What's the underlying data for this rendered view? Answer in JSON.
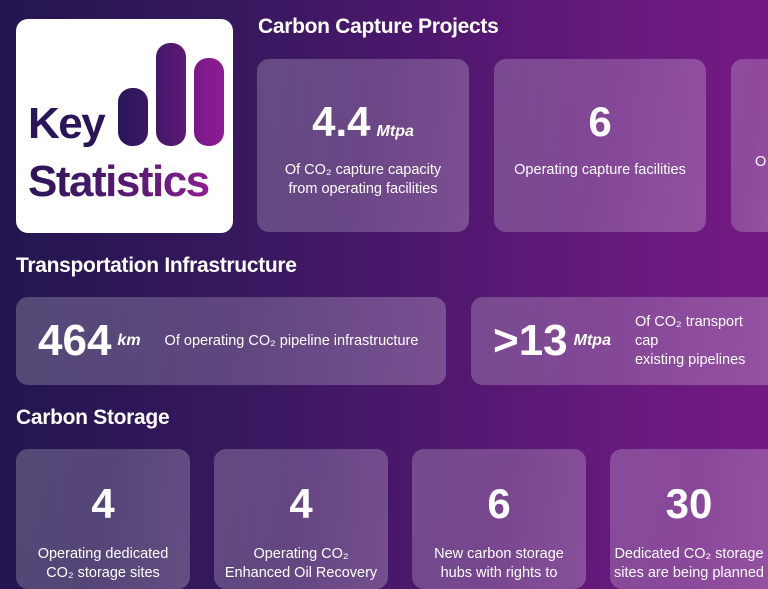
{
  "logo": {
    "line1": "Key",
    "line2": "Statistics"
  },
  "capture": {
    "heading": "Carbon Capture Projects",
    "cards": [
      {
        "value": "4.4",
        "unit": "Mtpa",
        "desc1": "Of CO₂ capture capacity",
        "desc2": "from operating facilities"
      },
      {
        "value": "6",
        "unit": "",
        "desc1": "Operating capture facilities",
        "desc2": ""
      },
      {
        "value": "",
        "unit": "",
        "desc1": "O",
        "desc2": ""
      }
    ]
  },
  "transport": {
    "heading": "Transportation Infrastructure",
    "cards": [
      {
        "value": "464",
        "unit": "km",
        "desc1": "Of operating CO₂ pipeline infrastructure",
        "desc2": ""
      },
      {
        "value": ">13",
        "unit": "Mtpa",
        "desc1": "Of CO₂ transport cap",
        "desc2": "existing pipelines"
      }
    ]
  },
  "storage": {
    "heading": "Carbon Storage",
    "cards": [
      {
        "value": "4",
        "desc1": "Operating dedicated",
        "desc2": "CO₂ storage sites"
      },
      {
        "value": "4",
        "desc1": "Operating CO₂",
        "desc2": "Enhanced Oil Recovery"
      },
      {
        "value": "6",
        "desc1": "New carbon storage",
        "desc2": "hubs with rights to"
      },
      {
        "value": "30",
        "desc1": "Dedicated CO₂ storage",
        "desc2": "sites are being planned"
      }
    ]
  }
}
